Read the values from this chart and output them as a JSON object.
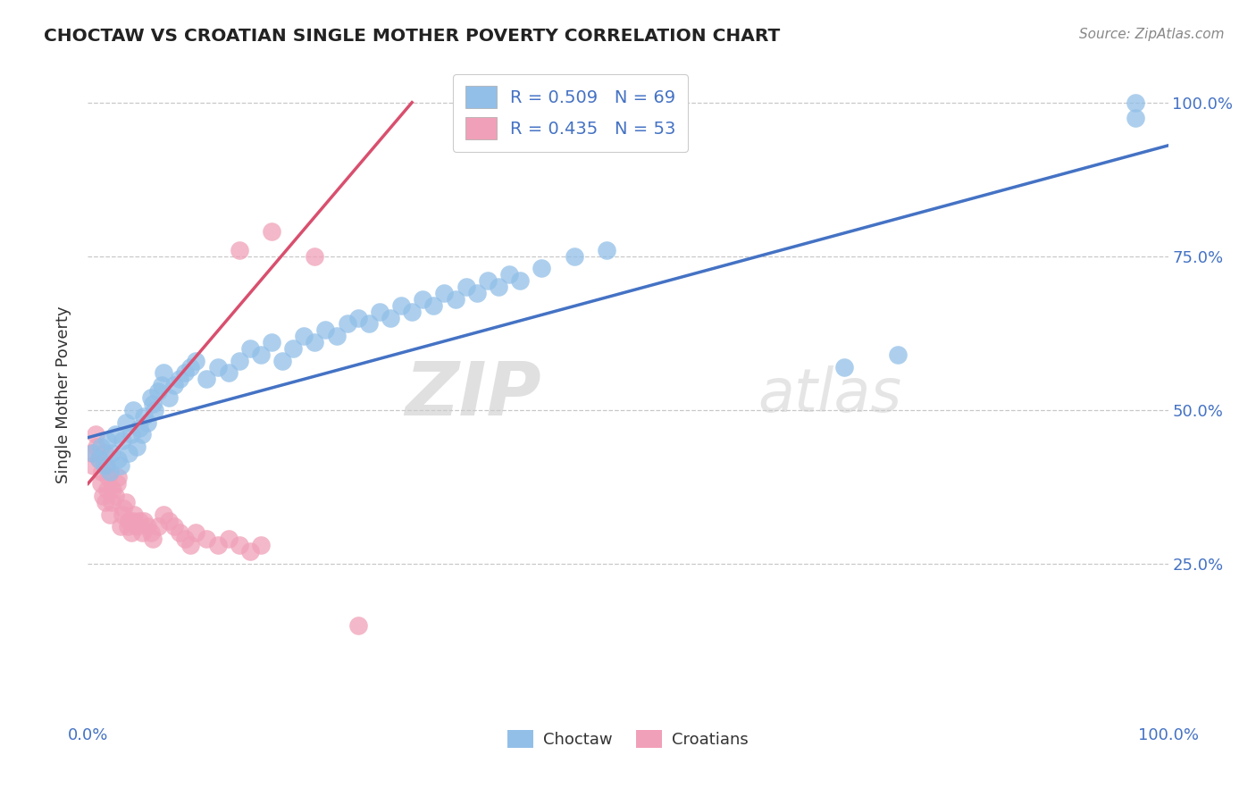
{
  "title": "CHOCTAW VS CROATIAN SINGLE MOTHER POVERTY CORRELATION CHART",
  "source_text": "Source: ZipAtlas.com",
  "ylabel": "Single Mother Poverty",
  "ytick_positions": [
    0.25,
    0.5,
    0.75,
    1.0
  ],
  "ytick_labels": [
    "25.0%",
    "50.0%",
    "75.0%",
    "100.0%"
  ],
  "xtick_positions": [
    0.0,
    1.0
  ],
  "xtick_labels": [
    "0.0%",
    "100.0%"
  ],
  "watermark_zip": "ZIP",
  "watermark_atlas": "atlas",
  "legend_r1": "R = 0.509",
  "legend_n1": "N = 69",
  "legend_r2": "R = 0.435",
  "legend_n2": "N = 53",
  "choctaw_color": "#92bfe8",
  "croatian_color": "#f0a0b8",
  "line_color_choctaw": "#4472c4",
  "line_color_croatian": "#d94f6e",
  "background_color": "#ffffff",
  "grid_color": "#c8c8c8",
  "choctaw_x": [
    0.005,
    0.01,
    0.012,
    0.015,
    0.018,
    0.02,
    0.022,
    0.025,
    0.028,
    0.03,
    0.032,
    0.035,
    0.038,
    0.04,
    0.042,
    0.045,
    0.048,
    0.05,
    0.052,
    0.055,
    0.058,
    0.06,
    0.062,
    0.065,
    0.068,
    0.07,
    0.075,
    0.08,
    0.085,
    0.09,
    0.095,
    0.1,
    0.11,
    0.12,
    0.13,
    0.14,
    0.15,
    0.16,
    0.17,
    0.18,
    0.19,
    0.2,
    0.21,
    0.22,
    0.23,
    0.24,
    0.25,
    0.26,
    0.27,
    0.28,
    0.29,
    0.3,
    0.31,
    0.32,
    0.33,
    0.34,
    0.35,
    0.36,
    0.37,
    0.38,
    0.39,
    0.4,
    0.42,
    0.45,
    0.48,
    0.7,
    0.75,
    0.97,
    0.97
  ],
  "choctaw_y": [
    0.43,
    0.42,
    0.44,
    0.41,
    0.45,
    0.4,
    0.43,
    0.46,
    0.42,
    0.41,
    0.45,
    0.48,
    0.43,
    0.46,
    0.5,
    0.44,
    0.47,
    0.46,
    0.49,
    0.48,
    0.52,
    0.51,
    0.5,
    0.53,
    0.54,
    0.56,
    0.52,
    0.54,
    0.55,
    0.56,
    0.57,
    0.58,
    0.55,
    0.57,
    0.56,
    0.58,
    0.6,
    0.59,
    0.61,
    0.58,
    0.6,
    0.62,
    0.61,
    0.63,
    0.62,
    0.64,
    0.65,
    0.64,
    0.66,
    0.65,
    0.67,
    0.66,
    0.68,
    0.67,
    0.69,
    0.68,
    0.7,
    0.69,
    0.71,
    0.7,
    0.72,
    0.71,
    0.73,
    0.75,
    0.76,
    0.57,
    0.59,
    1.0,
    0.975
  ],
  "croatian_x": [
    0.003,
    0.005,
    0.007,
    0.008,
    0.01,
    0.012,
    0.013,
    0.014,
    0.015,
    0.016,
    0.017,
    0.018,
    0.019,
    0.02,
    0.022,
    0.023,
    0.025,
    0.027,
    0.028,
    0.03,
    0.032,
    0.033,
    0.035,
    0.037,
    0.038,
    0.04,
    0.042,
    0.043,
    0.045,
    0.048,
    0.05,
    0.052,
    0.055,
    0.058,
    0.06,
    0.065,
    0.07,
    0.075,
    0.08,
    0.085,
    0.09,
    0.095,
    0.1,
    0.11,
    0.12,
    0.13,
    0.14,
    0.15,
    0.16,
    0.17,
    0.21,
    0.25,
    0.14
  ],
  "croatian_y": [
    0.43,
    0.41,
    0.46,
    0.44,
    0.42,
    0.38,
    0.4,
    0.36,
    0.43,
    0.35,
    0.41,
    0.37,
    0.39,
    0.33,
    0.35,
    0.37,
    0.36,
    0.38,
    0.39,
    0.31,
    0.33,
    0.34,
    0.35,
    0.31,
    0.32,
    0.3,
    0.32,
    0.33,
    0.31,
    0.32,
    0.3,
    0.32,
    0.31,
    0.3,
    0.29,
    0.31,
    0.33,
    0.32,
    0.31,
    0.3,
    0.29,
    0.28,
    0.3,
    0.29,
    0.28,
    0.29,
    0.28,
    0.27,
    0.28,
    0.79,
    0.75,
    0.15,
    0.76
  ],
  "choctaw_line_x": [
    0.0,
    1.0
  ],
  "choctaw_line_y": [
    0.455,
    0.93
  ],
  "croatian_line_x": [
    0.0,
    0.3
  ],
  "croatian_line_y": [
    0.38,
    1.0
  ]
}
